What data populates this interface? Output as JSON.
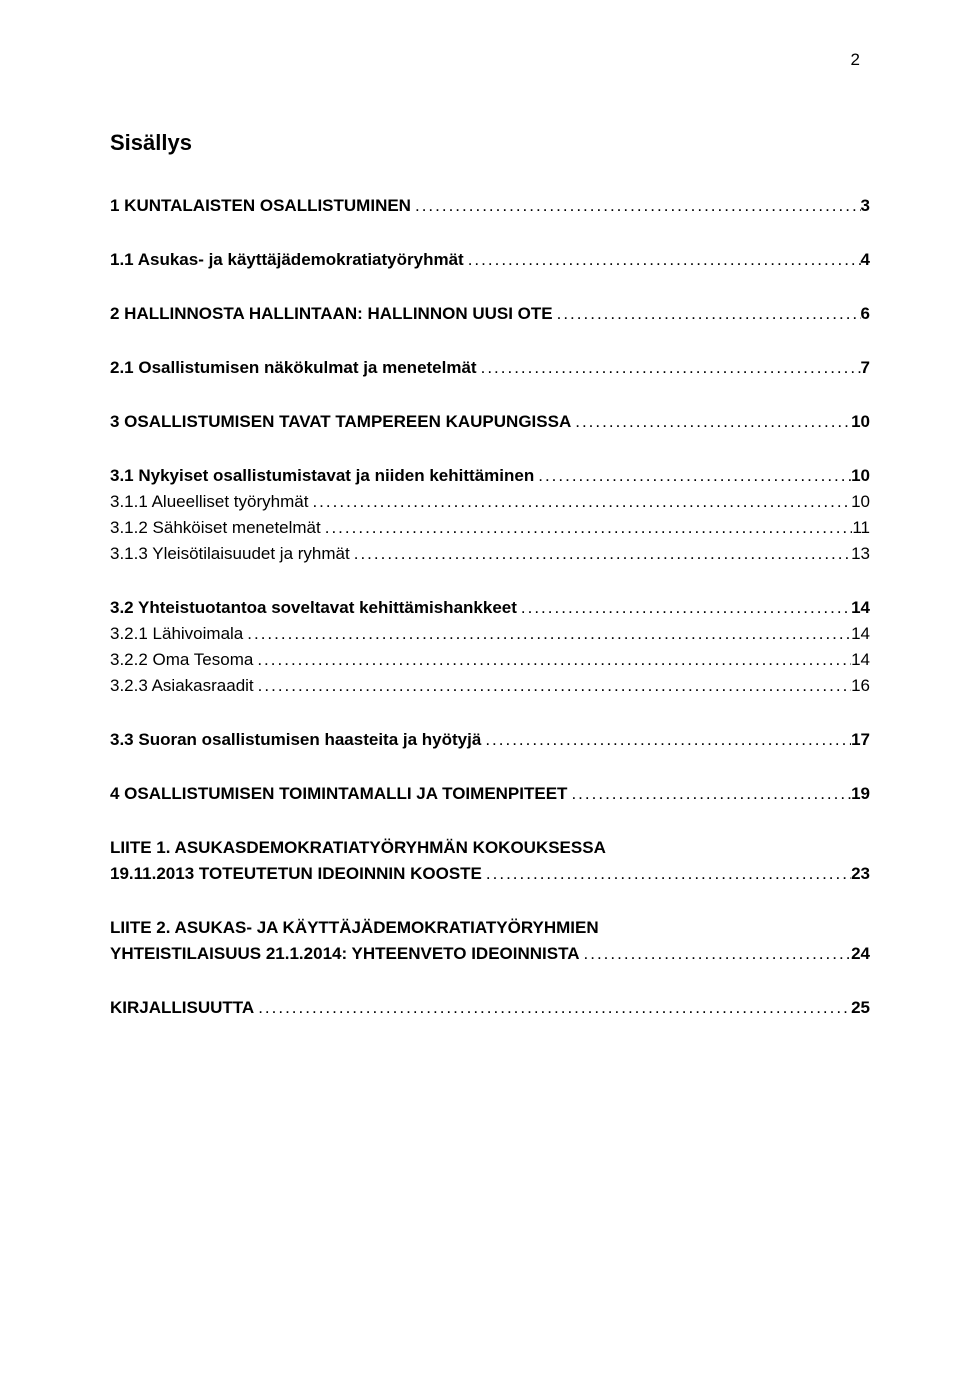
{
  "page_number": "2",
  "title": "Sisällys",
  "toc": [
    {
      "level": 1,
      "label": "1 KUNTALAISTEN OSALLISTUMINEN",
      "page": "3"
    },
    {
      "level": 2,
      "label": "1.1 Asukas- ja käyttäjädemokratiatyöryhmät",
      "page": "4"
    },
    {
      "level": 1,
      "label": "2 HALLINNOSTA HALLINTAAN: HALLINNON UUSI OTE",
      "page": "6"
    },
    {
      "level": 2,
      "label": "2.1 Osallistumisen näkökulmat ja menetelmät",
      "page": "7"
    },
    {
      "level": 1,
      "label": "3 OSALLISTUMISEN TAVAT TAMPEREEN KAUPUNGISSA",
      "page": "10"
    },
    {
      "level": 2,
      "label": "3.1 Nykyiset osallistumistavat ja niiden kehittäminen",
      "page": "10"
    },
    {
      "level": 3,
      "label": "3.1.1 Alueelliset työryhmät",
      "page": "10"
    },
    {
      "level": 3,
      "label": "3.1.2 Sähköiset menetelmät",
      "page": "11"
    },
    {
      "level": 3,
      "label": "3.1.3 Yleisötilaisuudet ja ryhmät",
      "page": "13"
    },
    {
      "level": 2,
      "label": "3.2 Yhteistuotantoa soveltavat kehittämishankkeet",
      "page": "14"
    },
    {
      "level": 3,
      "label": "3.2.1 Lähivoimala",
      "page": "14"
    },
    {
      "level": 3,
      "label": "3.2.2 Oma Tesoma",
      "page": "14"
    },
    {
      "level": 3,
      "label": "3.2.3 Asiakasraadit",
      "page": "16"
    },
    {
      "level": 2,
      "label": "3.3 Suoran osallistumisen haasteita ja hyötyjä",
      "page": "17"
    },
    {
      "level": 1,
      "label": "4 OSALLISTUMISEN TOIMINTAMALLI JA TOIMENPITEET",
      "page": "19"
    },
    {
      "level": 1,
      "label": "LIITE 1. ASUKASDEMOKRATIATYÖRYHMÄN KOKOUKSESSA 19.11.2013 TOTEUTETUN IDEOINNIN KOOSTE",
      "page": "23",
      "wrap": true,
      "line1": "LIITE 1. ASUKASDEMOKRATIATYÖRYHMÄN KOKOUKSESSA",
      "line2": "19.11.2013 TOTEUTETUN IDEOINNIN KOOSTE"
    },
    {
      "level": 1,
      "label": "LIITE 2. ASUKAS- JA KÄYTTÄJÄDEMOKRATIATYÖRYHMIEN YHTEISTILAISUUS 21.1.2014: YHTEENVETO IDEOINNISTA",
      "page": "24",
      "wrap": true,
      "line1": "LIITE 2. ASUKAS- JA KÄYTTÄJÄDEMOKRATIATYÖRYHMIEN",
      "line2": "YHTEISTILAISUUS 21.1.2014: YHTEENVETO IDEOINNISTA"
    },
    {
      "level": 1,
      "label": "KIRJALLISUUTTA",
      "page": "25"
    }
  ],
  "colors": {
    "text": "#000000",
    "background": "#ffffff"
  },
  "typography": {
    "title_fontsize": 22,
    "entry_fontsize": 17,
    "font_family": "Arial"
  }
}
